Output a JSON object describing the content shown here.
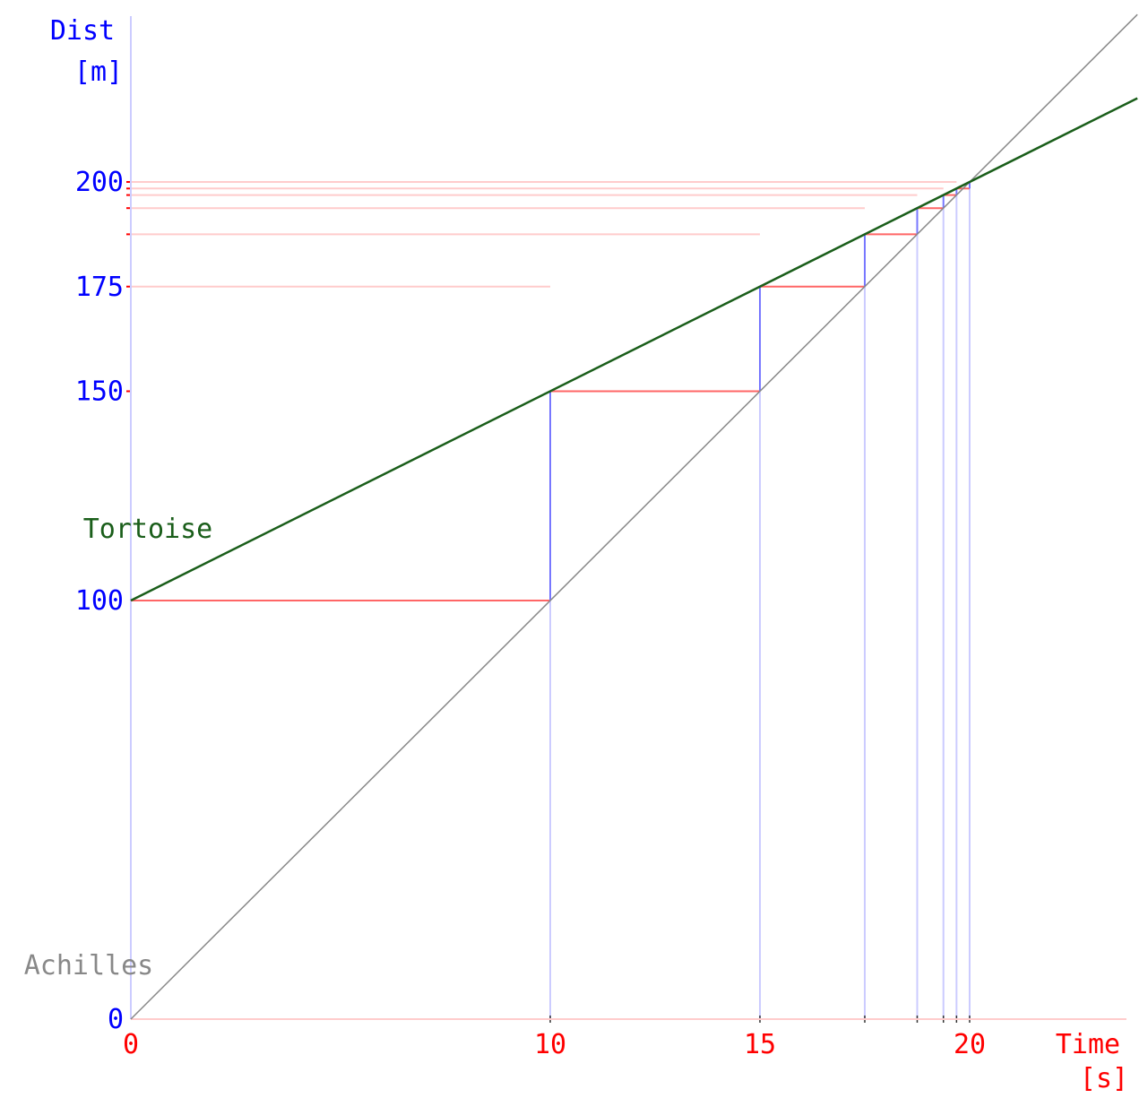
{
  "chart_data": {
    "type": "line",
    "ylabel_line1": "Dist",
    "ylabel_line2": "[m]",
    "xlabel_line1": "Time",
    "xlabel_line2": "[s]",
    "xlim": [
      0,
      24
    ],
    "ylim": [
      0,
      240
    ],
    "x_ticks": [
      "0",
      "10",
      "15",
      "20"
    ],
    "y_ticks": [
      "0",
      "100",
      "150",
      "175",
      "200"
    ],
    "series": [
      {
        "name": "Achilles",
        "color": "#888888",
        "points": [
          [
            0,
            0
          ],
          [
            24,
            240
          ]
        ]
      },
      {
        "name": "Tortoise",
        "color": "#1a5e1a",
        "points": [
          [
            0,
            100
          ],
          [
            24,
            220
          ]
        ]
      }
    ],
    "zeno_steps": [
      {
        "t_start": 0,
        "t_end": 10,
        "d_start": 100,
        "d_end": 150
      },
      {
        "t_start": 10,
        "t_end": 15,
        "d_start": 150,
        "d_end": 175
      },
      {
        "t_start": 15,
        "t_end": 17.5,
        "d_start": 175,
        "d_end": 187.5
      },
      {
        "t_start": 17.5,
        "t_end": 18.75,
        "d_start": 187.5,
        "d_end": 193.75
      },
      {
        "t_start": 18.75,
        "t_end": 19.375,
        "d_start": 193.75,
        "d_end": 196.875
      },
      {
        "t_start": 19.375,
        "t_end": 19.6875,
        "d_start": 196.875,
        "d_end": 198.4375
      },
      {
        "t_start": 19.6875,
        "t_end": 20,
        "d_start": 198.4375,
        "d_end": 200
      }
    ],
    "colors": {
      "x_axis": "#ff0000",
      "y_axis": "#0000ff",
      "horizontal_step": "#ff6666",
      "vertical_step": "#7777ff",
      "guide_horizontal": "#ffcccc",
      "guide_vertical": "#ccccff"
    }
  }
}
